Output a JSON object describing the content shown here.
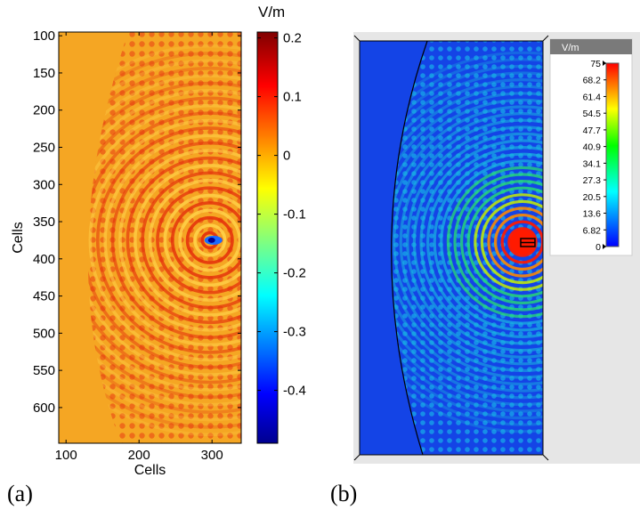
{
  "panels": [
    {
      "label": "(a)"
    },
    {
      "label": "(b)"
    }
  ],
  "chart_data": [
    {
      "type": "heatmap",
      "title": "",
      "xlabel": "Cells",
      "ylabel": "Cells",
      "x_ticks": [
        100,
        200,
        300
      ],
      "y_ticks": [
        100,
        150,
        200,
        250,
        300,
        350,
        400,
        450,
        500,
        550,
        600
      ],
      "xlim": [
        90,
        340
      ],
      "ylim": [
        648,
        95
      ],
      "y_inverted": true,
      "source_cell": [
        297,
        375
      ],
      "colorbar": {
        "unit": "V/m",
        "ticks": [
          0.2,
          0.1,
          0,
          -0.1,
          -0.2,
          -0.3,
          -0.4
        ],
        "range": [
          -0.49,
          0.21
        ],
        "colormap": "jet"
      },
      "background_color": "#f5a623"
    },
    {
      "type": "heatmap",
      "title": "",
      "colorbar": {
        "unit": "V/m",
        "ticks": [
          "75",
          "68.2",
          "61.4",
          "54.5",
          "47.7",
          "40.9",
          "34.1",
          "27.3",
          "20.5",
          "13.6",
          "6.82",
          "0"
        ],
        "range": [
          0,
          75
        ],
        "colormap": "jet"
      },
      "background_color": "#1444e6"
    }
  ]
}
